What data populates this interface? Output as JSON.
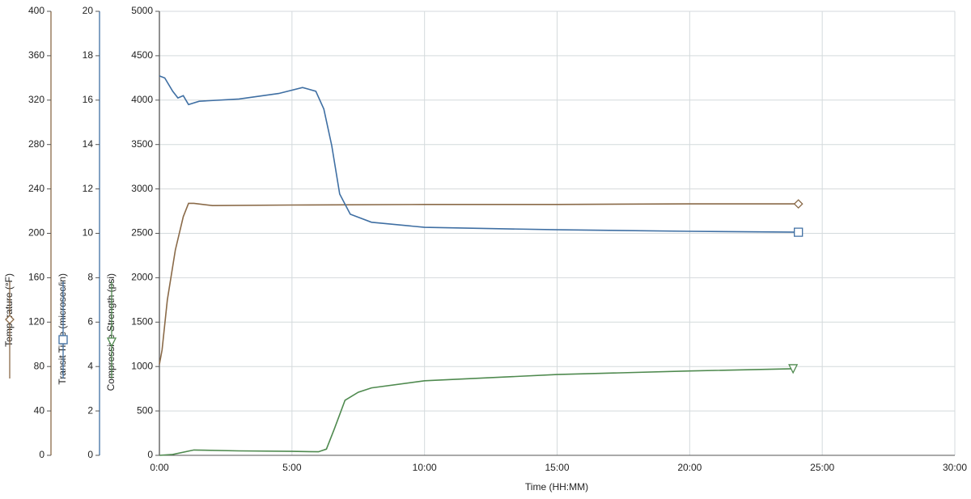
{
  "chart_data": {
    "type": "line",
    "xlim": [
      0,
      30
    ],
    "xticks": [
      {
        "value": 0,
        "label": "0:00"
      },
      {
        "value": 5,
        "label": "5:00"
      },
      {
        "value": 10,
        "label": "10:00"
      },
      {
        "value": 15,
        "label": "15:00"
      },
      {
        "value": 20,
        "label": "20:00"
      },
      {
        "value": 25,
        "label": "25:00"
      },
      {
        "value": 30,
        "label": "30:00"
      }
    ],
    "xlabel": "Time (HH:MM)",
    "ylim": [
      0,
      5000
    ],
    "yticks": [
      0,
      500,
      1000,
      1500,
      2000,
      2500,
      3000,
      3500,
      4000,
      4500,
      5000
    ],
    "y2lim": [
      0,
      20
    ],
    "y2ticks": [
      0,
      2,
      4,
      6,
      8,
      10,
      12,
      14,
      16,
      18,
      20
    ],
    "y3lim": [
      0,
      400
    ],
    "y3ticks": [
      0,
      40,
      80,
      120,
      160,
      200,
      240,
      280,
      320,
      360,
      400
    ],
    "grid": true,
    "series": [
      {
        "name": "Temperature (°F)",
        "color": "#8a6a48",
        "axis": "y3",
        "marker": "diamond",
        "x": [
          0,
          0.1,
          0.3,
          0.6,
          0.9,
          1.1,
          1.3,
          2,
          5,
          10,
          15,
          20,
          24.1
        ],
        "values": [
          82,
          95,
          140,
          185,
          215,
          227,
          227,
          225,
          225.5,
          226,
          226,
          226.5,
          226.5
        ]
      },
      {
        "name": "Transit Time (microsec/in)",
        "color": "#3f6fa3",
        "axis": "y2",
        "marker": "square",
        "x": [
          0,
          0.2,
          0.5,
          0.7,
          0.9,
          1.1,
          1.5,
          3,
          4.5,
          5.4,
          5.9,
          6.2,
          6.5,
          6.8,
          7.2,
          8,
          10,
          15,
          20,
          24.1
        ],
        "values": [
          17.09,
          17.0,
          16.4,
          16.1,
          16.2,
          15.8,
          15.95,
          16.05,
          16.3,
          16.57,
          16.4,
          15.6,
          13.95,
          11.77,
          10.86,
          10.5,
          10.27,
          10.16,
          10.09,
          10.05
        ]
      },
      {
        "name": "Compressive Strength (psi)",
        "color": "#4f8a4f",
        "axis": "y",
        "marker": "triangle",
        "x": [
          0,
          0.5,
          1.3,
          3,
          5,
          6.0,
          6.3,
          6.6,
          7,
          7.5,
          8,
          10,
          15,
          20,
          23.9
        ],
        "values": [
          0,
          10,
          60,
          50,
          45,
          40,
          70,
          300,
          620,
          710,
          760,
          840,
          910,
          950,
          975
        ]
      }
    ]
  }
}
